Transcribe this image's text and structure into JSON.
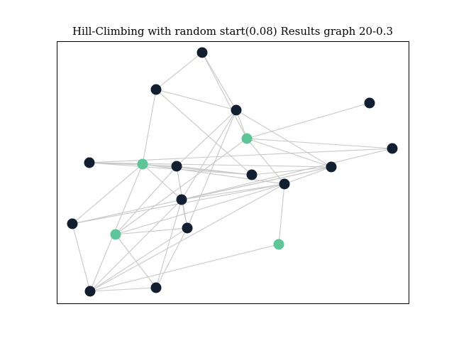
{
  "title": "Hill-Climbing with random start(0.08) Results graph 20-0.3",
  "colors": {
    "default_node": "#111f30",
    "highlight_node": "#5dc598",
    "edge": "#c8c8c8",
    "frame": "#000000",
    "background": "#ffffff"
  },
  "graph": {
    "nodes": [
      {
        "id": 0,
        "group": "default"
      },
      {
        "id": 1,
        "group": "default"
      },
      {
        "id": 2,
        "group": "default"
      },
      {
        "id": 3,
        "group": "default"
      },
      {
        "id": 4,
        "group": "highlight"
      },
      {
        "id": 5,
        "group": "default"
      },
      {
        "id": 6,
        "group": "default"
      },
      {
        "id": 7,
        "group": "highlight"
      },
      {
        "id": 8,
        "group": "default"
      },
      {
        "id": 9,
        "group": "default"
      },
      {
        "id": 10,
        "group": "default"
      },
      {
        "id": 11,
        "group": "default"
      },
      {
        "id": 12,
        "group": "default"
      },
      {
        "id": 13,
        "group": "default"
      },
      {
        "id": 14,
        "group": "default"
      },
      {
        "id": 15,
        "group": "highlight"
      },
      {
        "id": 16,
        "group": "highlight"
      },
      {
        "id": 17,
        "group": "default"
      },
      {
        "id": 18,
        "group": "default"
      }
    ],
    "edges": [
      [
        0,
        1
      ],
      [
        0,
        3
      ],
      [
        0,
        4
      ],
      [
        1,
        3
      ],
      [
        1,
        7
      ],
      [
        1,
        9
      ],
      [
        3,
        4
      ],
      [
        3,
        8
      ],
      [
        3,
        10
      ],
      [
        3,
        12
      ],
      [
        3,
        14
      ],
      [
        4,
        2
      ],
      [
        4,
        5
      ],
      [
        4,
        10
      ],
      [
        4,
        11
      ],
      [
        4,
        15
      ],
      [
        5,
        6
      ],
      [
        5,
        12
      ],
      [
        6,
        7
      ],
      [
        6,
        10
      ],
      [
        6,
        8
      ],
      [
        6,
        9
      ],
      [
        7,
        9
      ],
      [
        7,
        11
      ],
      [
        7,
        13
      ],
      [
        7,
        17
      ],
      [
        7,
        12
      ],
      [
        8,
        9
      ],
      [
        8,
        14
      ],
      [
        8,
        15
      ],
      [
        9,
        10
      ],
      [
        10,
        11
      ],
      [
        10,
        12
      ],
      [
        10,
        13
      ],
      [
        11,
        13
      ],
      [
        11,
        12
      ],
      [
        11,
        16
      ],
      [
        11,
        17
      ],
      [
        11,
        15
      ],
      [
        12,
        14
      ],
      [
        12,
        17
      ],
      [
        12,
        18
      ],
      [
        13,
        17
      ],
      [
        14,
        18
      ],
      [
        14,
        17
      ],
      [
        14,
        15
      ],
      [
        15,
        18
      ],
      [
        16,
        17
      ],
      [
        17,
        18
      ]
    ]
  }
}
